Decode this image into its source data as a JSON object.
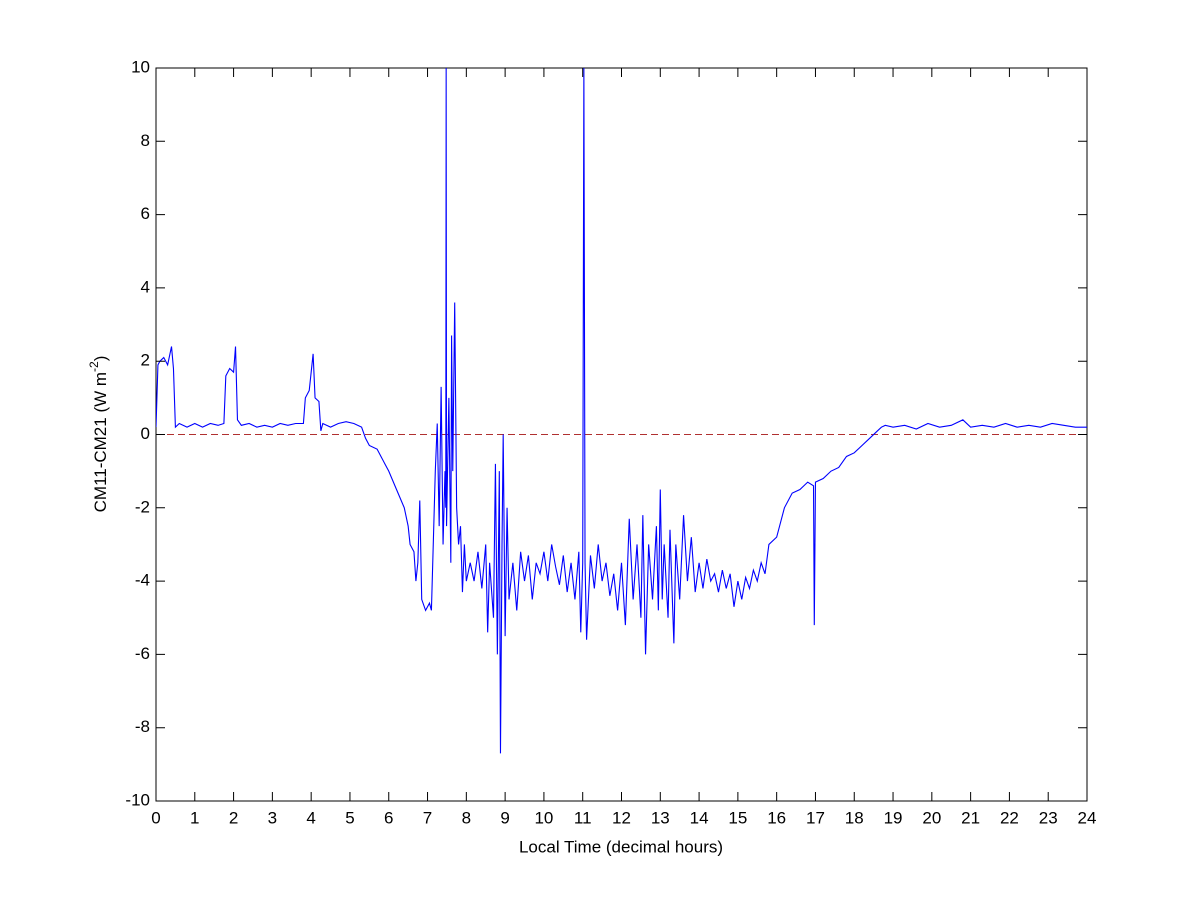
{
  "chart_data": {
    "type": "line",
    "xlabel": "Local Time (decimal hours)",
    "ylabel": {
      "text": "CM11-CM21 (W m",
      "superscript": "-2",
      "suffix": ")"
    },
    "color": "#0000ff",
    "reference_line": {
      "value": 0,
      "color": "#b03030",
      "style": "dashed"
    },
    "xlim": [
      0,
      24
    ],
    "xticks": [
      0,
      1,
      2,
      3,
      4,
      5,
      6,
      7,
      8,
      9,
      10,
      11,
      12,
      13,
      14,
      15,
      16,
      17,
      18,
      19,
      20,
      21,
      22,
      23,
      24
    ],
    "ylim": [
      -10,
      10
    ],
    "yticks": [
      -10,
      -8,
      -6,
      -4,
      -2,
      0,
      2,
      4,
      6,
      8,
      10
    ],
    "x": [
      0,
      0.05,
      0.1,
      0.2,
      0.3,
      0.4,
      0.45,
      0.5,
      0.6,
      0.8,
      1.0,
      1.2,
      1.4,
      1.6,
      1.75,
      1.8,
      1.9,
      2.0,
      2.05,
      2.1,
      2.2,
      2.4,
      2.6,
      2.8,
      3.0,
      3.2,
      3.4,
      3.6,
      3.8,
      3.85,
      3.95,
      4.05,
      4.1,
      4.2,
      4.25,
      4.3,
      4.5,
      4.7,
      4.9,
      5.1,
      5.3,
      5.4,
      5.5,
      5.7,
      5.9,
      6.0,
      6.2,
      6.4,
      6.5,
      6.55,
      6.65,
      6.7,
      6.75,
      6.8,
      6.85,
      6.95,
      7.05,
      7.1,
      7.2,
      7.25,
      7.3,
      7.35,
      7.4,
      7.45,
      7.47,
      7.48,
      7.49,
      7.55,
      7.6,
      7.62,
      7.65,
      7.7,
      7.75,
      7.8,
      7.85,
      7.9,
      7.95,
      8.0,
      8.1,
      8.2,
      8.3,
      8.4,
      8.5,
      8.55,
      8.6,
      8.7,
      8.75,
      8.8,
      8.85,
      8.88,
      8.92,
      8.95,
      9.0,
      9.05,
      9.1,
      9.2,
      9.3,
      9.4,
      9.5,
      9.6,
      9.7,
      9.8,
      9.9,
      10.0,
      10.1,
      10.2,
      10.3,
      10.4,
      10.5,
      10.6,
      10.7,
      10.8,
      10.9,
      10.95,
      11.0,
      11.03,
      11.06,
      11.1,
      11.2,
      11.3,
      11.4,
      11.5,
      11.6,
      11.7,
      11.8,
      11.9,
      12.0,
      12.1,
      12.2,
      12.3,
      12.4,
      12.5,
      12.55,
      12.62,
      12.7,
      12.8,
      12.9,
      12.95,
      13.0,
      13.05,
      13.1,
      13.2,
      13.25,
      13.35,
      13.4,
      13.5,
      13.6,
      13.7,
      13.8,
      13.9,
      14.0,
      14.1,
      14.2,
      14.3,
      14.4,
      14.5,
      14.6,
      14.7,
      14.8,
      14.9,
      15.0,
      15.1,
      15.2,
      15.3,
      15.4,
      15.5,
      15.6,
      15.7,
      15.8,
      16.0,
      16.2,
      16.4,
      16.6,
      16.8,
      16.95,
      16.97,
      17.0,
      17.2,
      17.4,
      17.6,
      17.8,
      18.0,
      18.2,
      18.4,
      18.6,
      18.7,
      18.8,
      19.0,
      19.3,
      19.6,
      19.9,
      20.2,
      20.5,
      20.8,
      21.0,
      21.3,
      21.6,
      21.9,
      22.2,
      22.5,
      22.8,
      23.1,
      23.4,
      23.7,
      24.0
    ],
    "values": [
      0.2,
      1.9,
      2.0,
      2.1,
      1.9,
      2.4,
      1.8,
      0.2,
      0.3,
      0.2,
      0.3,
      0.2,
      0.3,
      0.25,
      0.3,
      1.6,
      1.8,
      1.7,
      2.4,
      0.4,
      0.25,
      0.3,
      0.2,
      0.25,
      0.2,
      0.3,
      0.25,
      0.3,
      0.3,
      1.0,
      1.2,
      2.2,
      1.0,
      0.9,
      0.1,
      0.3,
      0.2,
      0.3,
      0.35,
      0.3,
      0.2,
      -0.1,
      -0.3,
      -0.4,
      -0.8,
      -1.0,
      -1.5,
      -2.0,
      -2.5,
      -3.0,
      -3.2,
      -4.0,
      -3.5,
      -1.8,
      -4.5,
      -4.8,
      -4.6,
      -4.8,
      -1.0,
      0.3,
      -2.5,
      1.3,
      -3.0,
      -1.0,
      -2.0,
      10,
      -2.5,
      1.0,
      -3.5,
      2.7,
      -1.0,
      3.6,
      -2.0,
      -3.0,
      -2.5,
      -4.3,
      -3.0,
      -4.0,
      -3.5,
      -4.0,
      -3.2,
      -4.2,
      -3.0,
      -5.4,
      -3.5,
      -5.0,
      -0.8,
      -6.0,
      -1.0,
      -8.7,
      -3.0,
      0.0,
      -5.5,
      -2.0,
      -4.5,
      -3.5,
      -4.8,
      -3.2,
      -4.0,
      -3.3,
      -4.5,
      -3.5,
      -3.8,
      -3.2,
      -4.0,
      -3.0,
      -3.6,
      -4.1,
      -3.3,
      -4.3,
      -3.5,
      -4.5,
      -3.2,
      -5.4,
      -3.5,
      10,
      -3.5,
      -5.6,
      -3.3,
      -4.2,
      -3.0,
      -4.0,
      -3.5,
      -4.4,
      -3.8,
      -4.8,
      -3.5,
      -5.2,
      -2.3,
      -4.5,
      -3.0,
      -5.0,
      -2.2,
      -6.0,
      -3.0,
      -4.5,
      -2.5,
      -4.8,
      -1.5,
      -4.5,
      -3.0,
      -5.0,
      -2.6,
      -5.7,
      -3.0,
      -4.5,
      -2.2,
      -4.0,
      -2.8,
      -4.3,
      -3.5,
      -4.2,
      -3.4,
      -4.0,
      -3.8,
      -4.3,
      -3.7,
      -4.2,
      -3.8,
      -4.7,
      -4.0,
      -4.5,
      -3.9,
      -4.2,
      -3.7,
      -4.0,
      -3.5,
      -3.8,
      -3.0,
      -2.8,
      -2.0,
      -1.6,
      -1.5,
      -1.3,
      -1.4,
      -5.2,
      -1.3,
      -1.2,
      -1.0,
      -0.9,
      -0.6,
      -0.5,
      -0.3,
      -0.1,
      0.1,
      0.2,
      0.25,
      0.2,
      0.25,
      0.15,
      0.3,
      0.2,
      0.25,
      0.4,
      0.2,
      0.25,
      0.2,
      0.3,
      0.2,
      0.25,
      0.2,
      0.3,
      0.25,
      0.2,
      0.2
    ]
  }
}
